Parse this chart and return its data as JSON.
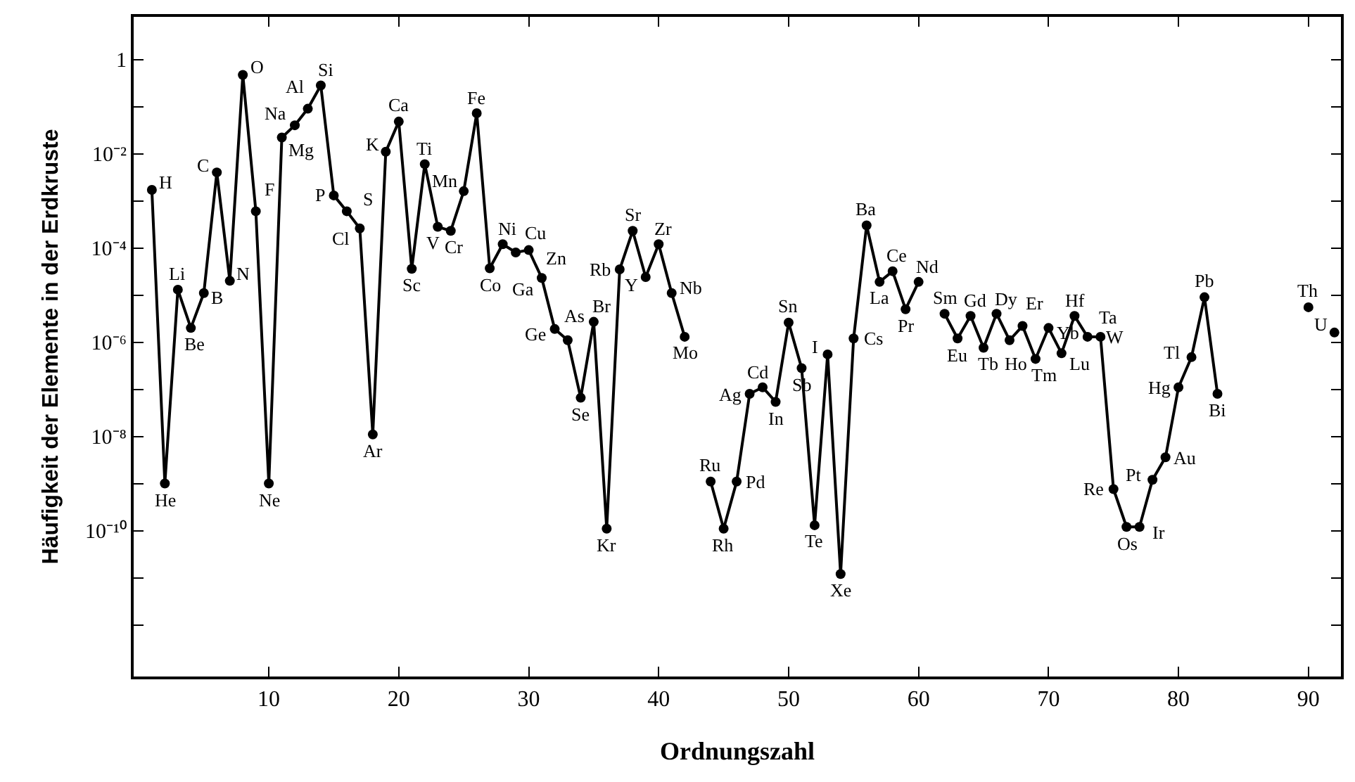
{
  "chart_data": {
    "type": "line",
    "xlabel": "Ordnungszahl",
    "ylabel": "Häufigkeit der Elemente in der Erdkruste",
    "x": [
      1,
      2,
      3,
      4,
      5,
      6,
      7,
      8,
      9,
      10,
      11,
      12,
      13,
      14,
      15,
      16,
      17,
      18,
      19,
      20,
      21,
      22,
      23,
      24,
      25,
      26,
      27,
      28,
      29,
      30,
      31,
      32,
      33,
      34,
      35,
      36,
      37,
      38,
      39,
      40,
      41,
      42,
      43,
      44,
      45,
      46,
      47,
      48,
      49,
      50,
      51,
      52,
      53,
      54,
      55,
      56,
      57,
      58,
      59,
      60,
      61,
      62,
      63,
      64,
      65,
      66,
      67,
      68,
      69,
      70,
      71,
      72,
      73,
      74,
      75,
      76,
      77,
      78,
      79,
      80,
      81,
      82,
      83,
      84,
      85,
      86,
      87,
      88,
      89,
      90,
      91,
      92
    ],
    "series": [
      {
        "color": "#000000",
        "values": [
          0.0017,
          1e-09,
          1.3e-05,
          2e-06,
          1.1e-05,
          0.004,
          2e-05,
          0.47,
          0.0006,
          1e-09,
          0.022,
          0.04,
          0.09,
          0.28,
          0.0013,
          0.0006,
          0.00026,
          1.1e-08,
          0.011,
          0.048,
          3.6e-05,
          0.006,
          0.00028,
          0.00023,
          0.0016,
          0.072,
          3.7e-05,
          0.00012,
          8e-05,
          9e-05,
          2.3e-05,
          1.9e-06,
          1.1e-06,
          6.6e-08,
          2.7e-06,
          1.1e-10,
          3.5e-05,
          0.00023,
          2.4e-05,
          0.00012,
          1.1e-05,
          1.3e-06,
          null,
          1.1e-09,
          1.1e-10,
          1.1e-09,
          8e-08,
          1.1e-07,
          5.4e-08,
          2.6e-06,
          2.8e-07,
          1.3e-10,
          5.5e-07,
          1.2e-11,
          1.2e-06,
          0.0003,
          1.9e-05,
          3.2e-05,
          5e-06,
          1.9e-05,
          null,
          4e-06,
          1.2e-06,
          3.6e-06,
          7.6e-07,
          4e-06,
          1.1e-06,
          2.2e-06,
          4.4e-07,
          2e-06,
          5.8e-07,
          3.6e-06,
          1.3e-06,
          1.3e-06,
          7.6e-10,
          1.2e-10,
          1.2e-10,
          1.2e-09,
          3.6e-09,
          1.1e-07,
          4.8e-07,
          9e-06,
          8e-08,
          null,
          null,
          null,
          null,
          null,
          null,
          5.5e-06,
          null,
          1.6e-06
        ],
        "value_labels": [
          "H",
          "He",
          "Li",
          "Be",
          "B",
          "C",
          "N",
          "O",
          "F",
          "Ne",
          "Na",
          "Mg",
          "Al",
          "Si",
          "P",
          "S",
          "Cl",
          "Ar",
          "K",
          "Ca",
          "Sc",
          "Ti",
          "V",
          "Cr",
          "Mn",
          "Fe",
          "Co",
          "Ni",
          "Cu",
          "Zn",
          "Ga",
          "Ge",
          "As",
          "Se",
          "Br",
          "Kr",
          "Rb",
          "Sr",
          "Y",
          "Zr",
          "Nb",
          "Mo",
          null,
          "Ru",
          "Rh",
          "Pd",
          "Ag",
          "Cd",
          "In",
          "Sn",
          "Sb",
          "Te",
          "I",
          "Xe",
          "Cs",
          "Ba",
          "La",
          "Ce",
          "Pr",
          "Nd",
          null,
          "Sm",
          "Eu",
          "Gd",
          "Tb",
          "Dy",
          "Ho",
          "Er",
          "Tm",
          "Yb",
          "Lu",
          "Hf",
          "Ta",
          "W",
          "Re",
          "Os",
          "Ir",
          "Pt",
          "Au",
          "Hg",
          "Tl",
          "Pb",
          "Bi",
          null,
          null,
          null,
          null,
          null,
          null,
          "Th",
          null,
          "U"
        ]
      }
    ],
    "log": "y",
    "xlim": [
      -0.4,
      92.5
    ],
    "xticks": [
      10,
      20,
      30,
      40,
      50,
      60,
      70,
      80,
      90
    ],
    "ylim": [
      8e-14,
      8
    ],
    "yticks": [
      {
        "value": 1,
        "label": "1"
      },
      {
        "value": 0.1,
        "label": null
      },
      {
        "value": 0.01,
        "label": "10⁻²"
      },
      {
        "value": 0.001,
        "label": null
      },
      {
        "value": 0.0001,
        "label": "10⁻⁴"
      },
      {
        "value": 1e-05,
        "label": null
      },
      {
        "value": 1e-06,
        "label": "10⁻⁶"
      },
      {
        "value": 1e-07,
        "label": null
      },
      {
        "value": 1e-08,
        "label": "10⁻⁸"
      },
      {
        "value": 1e-09,
        "label": null
      },
      {
        "value": 1e-10,
        "label": "10⁻¹⁰"
      },
      {
        "value": 1e-11,
        "label": null
      },
      {
        "value": 1e-12,
        "label": null
      }
    ],
    "legend": false,
    "marker": "circle",
    "line_style": "solid"
  }
}
